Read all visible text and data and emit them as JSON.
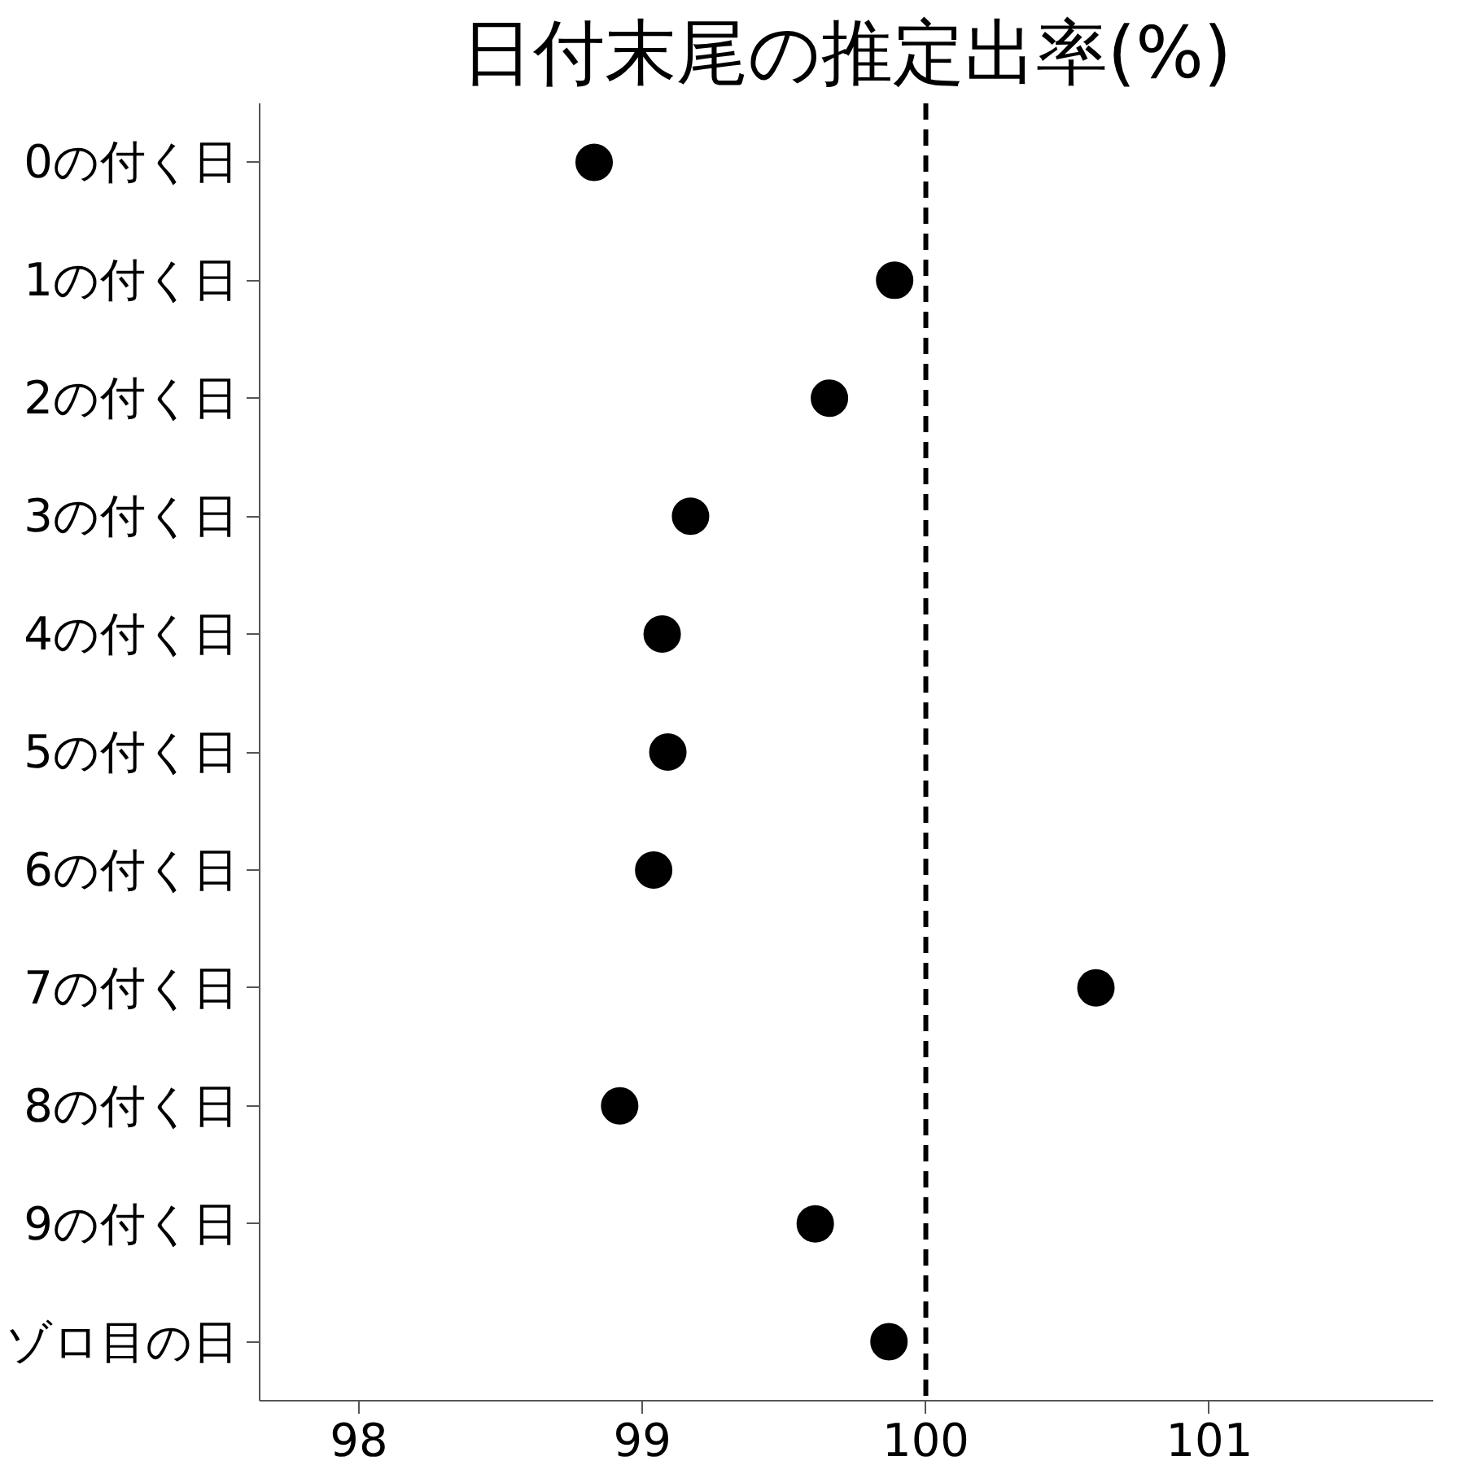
{
  "chart_data": {
    "type": "scatter",
    "title": "日付末尾の推定出率(%)",
    "orientation": "horizontal",
    "categories": [
      "0の付く日",
      "1の付く日",
      "2の付く日",
      "3の付く日",
      "4の付く日",
      "5の付く日",
      "6の付く日",
      "7の付く日",
      "8の付く日",
      "9の付く日",
      "ゾロ目の日"
    ],
    "series": [
      {
        "color": "#000000",
        "values": [
          98.83,
          99.89,
          99.66,
          99.17,
          99.07,
          99.09,
          99.04,
          100.6,
          98.92,
          99.61,
          99.87
        ]
      }
    ],
    "xlim": [
      97.65,
      101.79
    ],
    "xticks": [
      98,
      99,
      100,
      101
    ],
    "ref_lines": [
      {
        "axis": "x",
        "value": 100,
        "color": "#000000",
        "line_style": "dashed"
      }
    ],
    "marker": "circle"
  }
}
